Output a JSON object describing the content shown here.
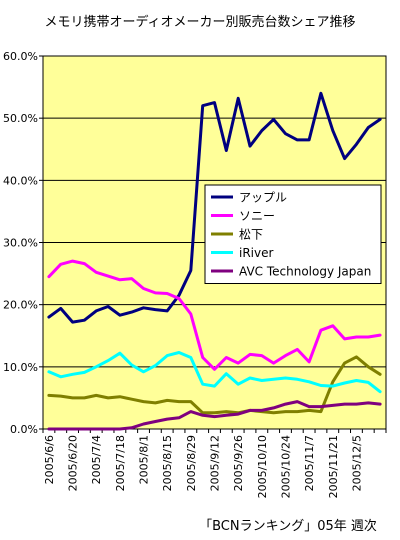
{
  "chart_data": {
    "type": "line",
    "title": "メモリ携帯オーディオメーカー別販売台数シェア推移",
    "source": "「BCNランキング」05年 週次",
    "ylim": [
      0,
      60
    ],
    "y_ticks": [
      "0.0%",
      "10.0%",
      "20.0%",
      "30.0%",
      "40.0%",
      "50.0%",
      "60.0%"
    ],
    "x_tick_labels": [
      "2005/6/6",
      "2005/6/20",
      "2005/7/4",
      "2005/7/18",
      "2005/8/1",
      "2005/8/15",
      "2005/8/29",
      "2005/9/12",
      "2005/9/26",
      "2005/10/10",
      "2005/10/24",
      "2005/11/7",
      "2005/11/21",
      "2005/12/5"
    ],
    "grid": "horizontal",
    "legend_position": "right",
    "series": [
      {
        "name": "アップル",
        "color": "#00007f",
        "values": [
          18.0,
          19.4,
          17.2,
          17.5,
          19.0,
          19.7,
          18.3,
          18.8,
          19.5,
          19.2,
          19.0,
          21.5,
          25.5,
          52.0,
          52.5,
          44.8,
          53.2,
          45.5,
          48.0,
          49.8,
          47.5,
          46.5,
          46.5,
          54.0,
          48.0,
          43.5,
          45.8,
          48.5,
          49.8
        ]
      },
      {
        "name": "ソニー",
        "color": "#ff00ff",
        "values": [
          24.5,
          26.5,
          27.0,
          26.6,
          25.2,
          24.6,
          24.0,
          24.2,
          22.6,
          21.9,
          21.8,
          21.0,
          18.5,
          11.5,
          9.6,
          11.5,
          10.6,
          12.0,
          11.8,
          10.6,
          11.8,
          12.8,
          10.8,
          15.9,
          16.6,
          14.5,
          14.8,
          14.8,
          15.1
        ]
      },
      {
        "name": "松下",
        "color": "#7f7f00",
        "values": [
          5.4,
          5.3,
          5.0,
          5.0,
          5.4,
          5.0,
          5.2,
          4.8,
          4.4,
          4.2,
          4.6,
          4.4,
          4.4,
          2.6,
          2.6,
          2.8,
          2.6,
          3.0,
          2.8,
          2.6,
          2.8,
          2.8,
          3.0,
          2.8,
          7.6,
          10.6,
          11.6,
          10.0,
          8.8
        ]
      },
      {
        "name": "iRiver",
        "color": "#00ffff",
        "values": [
          9.2,
          8.4,
          8.8,
          9.1,
          10.0,
          11.0,
          12.2,
          10.3,
          9.2,
          10.2,
          11.8,
          12.3,
          11.5,
          7.2,
          6.9,
          8.9,
          7.2,
          8.2,
          7.8,
          8.0,
          8.2,
          8.0,
          7.6,
          7.0,
          6.9,
          7.4,
          7.8,
          7.5,
          6.0
        ]
      },
      {
        "name": "AVC Technology Japan",
        "color": "#7f007f",
        "values": [
          0.0,
          0.0,
          0.0,
          0.0,
          0.0,
          0.0,
          0.0,
          0.2,
          0.8,
          1.2,
          1.6,
          1.8,
          2.8,
          2.2,
          2.0,
          2.2,
          2.4,
          3.0,
          3.0,
          3.4,
          4.0,
          4.4,
          3.6,
          3.6,
          3.8,
          4.0,
          4.0,
          4.2,
          4.0
        ]
      }
    ]
  }
}
